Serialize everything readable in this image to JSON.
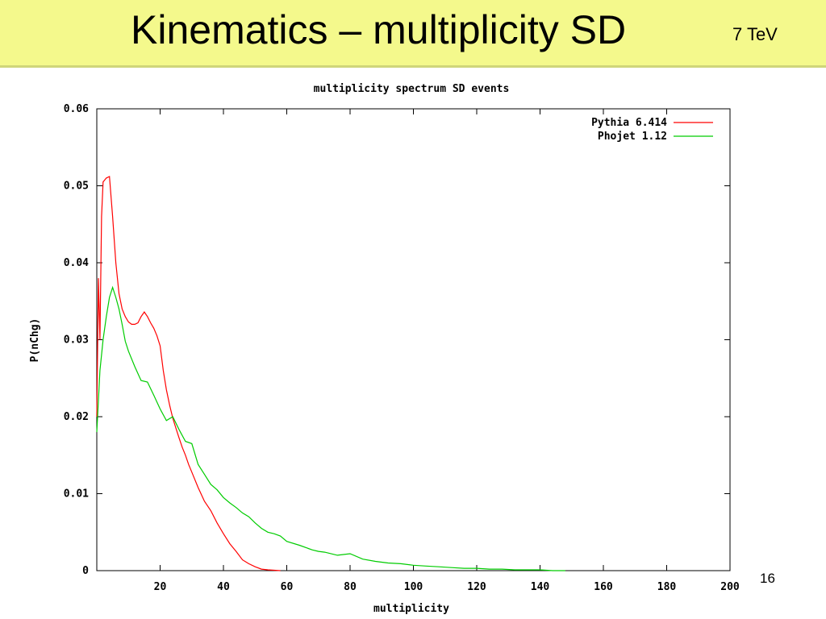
{
  "slide": {
    "title": "Kinematics – multiplicity SD",
    "energy": "7 TeV",
    "page_number": "16",
    "title_bar_color": "#f4f98c"
  },
  "chart_data": {
    "type": "line",
    "title": "multiplicity spectrum SD events",
    "xlabel": "multiplicity",
    "ylabel": "P(nChg)",
    "xlim": [
      0,
      200
    ],
    "ylim": [
      0,
      0.06
    ],
    "xticks": [
      20,
      40,
      60,
      80,
      100,
      120,
      140,
      160,
      180,
      200
    ],
    "yticks": [
      0,
      0.01,
      0.02,
      0.03,
      0.04,
      0.05,
      0.06
    ],
    "ytick_labels": [
      "0",
      "0.01",
      "0.02",
      "0.03",
      "0.04",
      "0.05",
      "0.06"
    ],
    "grid": false,
    "legend_position": "top-right",
    "series": [
      {
        "name": "Pythia 6.414",
        "color": "#ff0000",
        "x": [
          0,
          0.5,
          1,
          1.5,
          2,
          3,
          4,
          5,
          6,
          7,
          8,
          9,
          10,
          11,
          12,
          13,
          14,
          15,
          16,
          17,
          18,
          19,
          20,
          21,
          22,
          23,
          24,
          25,
          26,
          27,
          28,
          29,
          30,
          32,
          34,
          36,
          38,
          40,
          42,
          44,
          46,
          48,
          50,
          52,
          54,
          56,
          58
        ],
        "y": [
          0.02,
          0.038,
          0.03,
          0.046,
          0.0505,
          0.051,
          0.0512,
          0.046,
          0.04,
          0.036,
          0.034,
          0.033,
          0.0323,
          0.032,
          0.032,
          0.0322,
          0.033,
          0.0336,
          0.033,
          0.0322,
          0.0315,
          0.0305,
          0.0292,
          0.026,
          0.0235,
          0.0215,
          0.0198,
          0.0185,
          0.0172,
          0.016,
          0.015,
          0.0138,
          0.0128,
          0.0108,
          0.009,
          0.0078,
          0.0062,
          0.0048,
          0.0035,
          0.0025,
          0.0014,
          0.0009,
          0.0005,
          0.0002,
          0.0001,
          5e-05,
          0.0
        ]
      },
      {
        "name": "Phojet 1.12",
        "color": "#00cc00",
        "x": [
          0,
          1,
          2,
          3,
          4,
          5,
          6,
          7,
          8,
          9,
          10,
          12,
          14,
          16,
          18,
          20,
          22,
          24,
          26,
          28,
          30,
          32,
          34,
          36,
          38,
          40,
          42,
          44,
          46,
          48,
          50,
          52,
          54,
          56,
          58,
          60,
          64,
          68,
          70,
          72,
          76,
          80,
          84,
          88,
          92,
          96,
          100,
          104,
          108,
          112,
          116,
          120,
          124,
          128,
          132,
          136,
          140,
          144,
          148
        ],
        "y": [
          0.018,
          0.026,
          0.03,
          0.033,
          0.0355,
          0.0368,
          0.0355,
          0.034,
          0.032,
          0.0298,
          0.0285,
          0.0265,
          0.0247,
          0.0245,
          0.0228,
          0.021,
          0.0195,
          0.02,
          0.0183,
          0.0168,
          0.0165,
          0.0138,
          0.0125,
          0.0112,
          0.0105,
          0.0095,
          0.0088,
          0.0082,
          0.0075,
          0.007,
          0.0062,
          0.0055,
          0.005,
          0.0048,
          0.0045,
          0.0038,
          0.0033,
          0.0027,
          0.0025,
          0.0024,
          0.002,
          0.0022,
          0.0015,
          0.0012,
          0.001,
          0.0009,
          0.0007,
          0.0006,
          0.0005,
          0.0004,
          0.0003,
          0.0003,
          0.0002,
          0.0002,
          0.0001,
          0.0001,
          0.0001,
          0.0,
          0.0
        ]
      }
    ]
  }
}
